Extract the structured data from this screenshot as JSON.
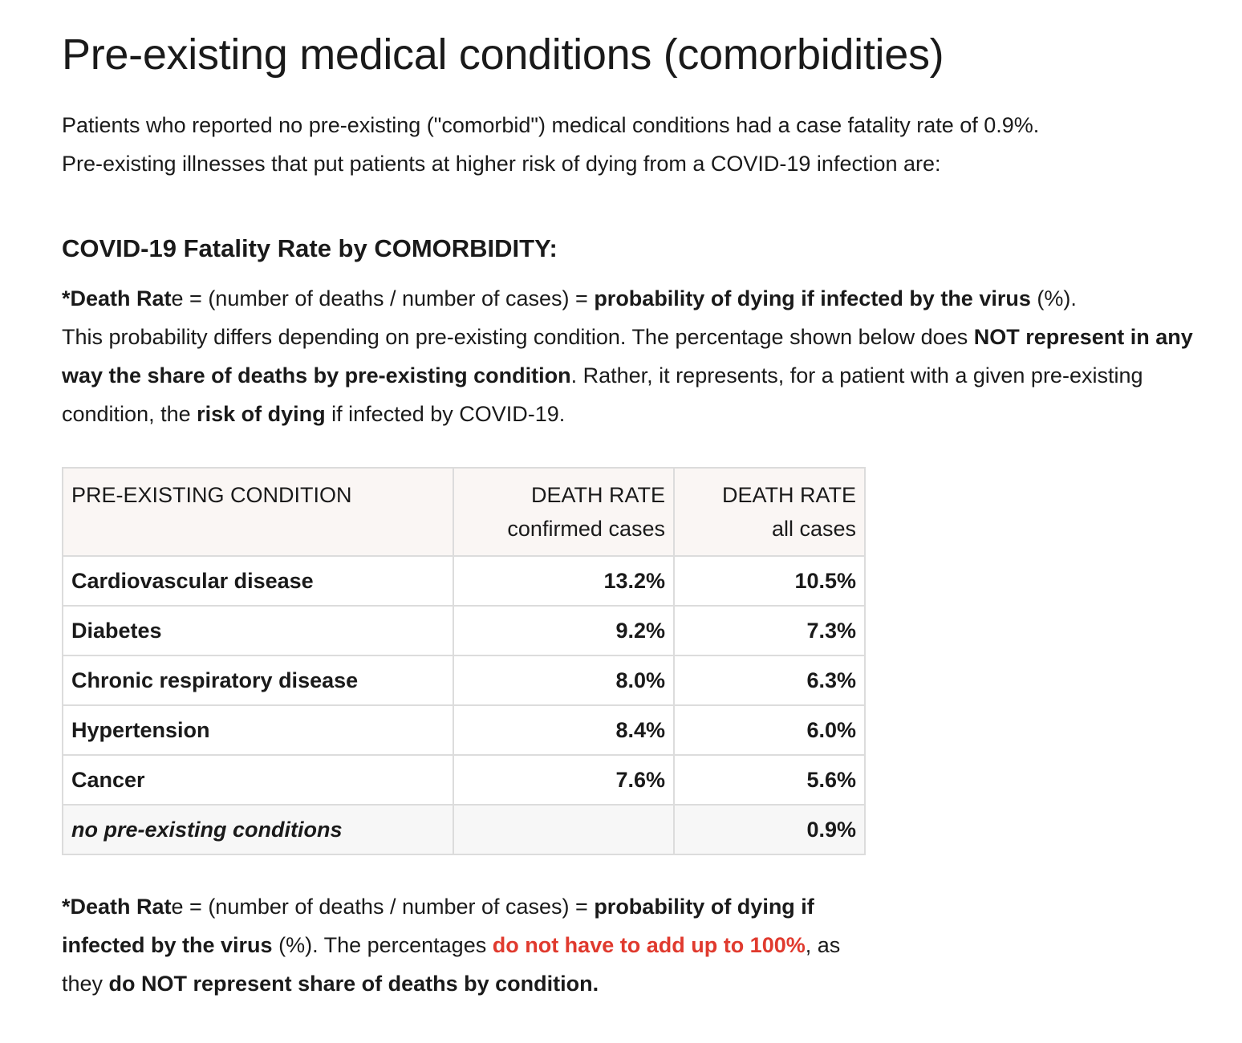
{
  "title": "Pre-existing medical conditions (comorbidities)",
  "intro": {
    "line1": "Patients who reported no pre-existing (\"comorbid\") medical conditions had a case fatality rate of 0.9%.",
    "line2": "Pre-existing illnesses that put patients at higher risk of dying from a COVID-19 infection are:"
  },
  "section_title": "COVID-19 Fatality Rate by COMORBIDITY:",
  "definition": {
    "b1": "*Death Rat",
    "t1": "e = (number of deaths / number of cases) = ",
    "b2": "probability of dying if infected by the virus",
    "t2": " (%).",
    "t3": "This probability differs depending on pre-existing condition. The percentage shown below does ",
    "b3": "NOT represent in any way the share of deaths by pre-existing condition",
    "t4": ". Rather, it represents, for a patient with a given pre-existing condition, the ",
    "b4": "risk of dying",
    "t5": " if infected by COVID-19."
  },
  "table": {
    "headers": {
      "condition": "PRE-EXISTING CONDITION",
      "confirmed_l1": "DEATH RATE",
      "confirmed_l2": "confirmed cases",
      "all_l1": "DEATH RATE",
      "all_l2": "all cases"
    },
    "rows": [
      {
        "condition": "Cardiovascular disease",
        "confirmed": "13.2%",
        "all": "10.5%"
      },
      {
        "condition": "Diabetes",
        "confirmed": "9.2%",
        "all": "7.3%"
      },
      {
        "condition": "Chronic respiratory disease",
        "confirmed": "8.0%",
        "all": "6.3%"
      },
      {
        "condition": "Hypertension",
        "confirmed": "8.4%",
        "all": "6.0%"
      },
      {
        "condition": "Cancer",
        "confirmed": "7.6%",
        "all": "5.6%"
      },
      {
        "condition": "no pre-existing conditions",
        "confirmed": "",
        "all": "0.9%"
      }
    ]
  },
  "footnote": {
    "b1": "*Death Rat",
    "t1": "e = (number of deaths / number of cases) = ",
    "b2": "probability of dying if infected by the virus",
    "t2": " (%). The percentages ",
    "red": "do not have to add up to 100%",
    "t3": ", as they ",
    "b3": "do NOT represent share of deaths by condition."
  },
  "colors": {
    "text": "#1a1a1a",
    "red": "#e03a2e",
    "header_bg": "#faf6f4",
    "border": "#dcdcdc"
  }
}
